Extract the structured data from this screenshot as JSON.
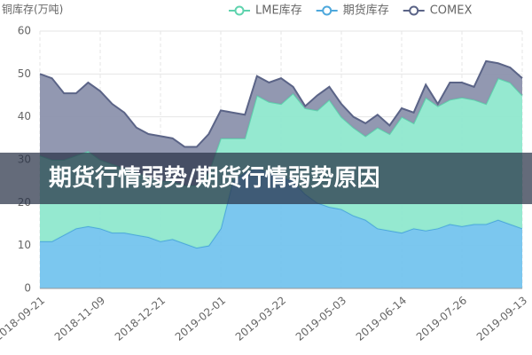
{
  "chart_data": {
    "type": "stacked-area",
    "y_label": "铜库存(万吨)",
    "categories": [
      "2018-09-21",
      null,
      null,
      null,
      null,
      "2018-11-09",
      null,
      null,
      null,
      null,
      "2018-12-21",
      null,
      null,
      null,
      null,
      "2019-02-01",
      null,
      null,
      null,
      null,
      "2019-03-22",
      null,
      null,
      null,
      null,
      "2019-05-03",
      null,
      null,
      null,
      null,
      "2019-06-14",
      null,
      null,
      null,
      null,
      "2019-07-26",
      null,
      null,
      null,
      null,
      "2019-09-13"
    ],
    "series": [
      {
        "name": "LME库存",
        "color": "#8fe8cd",
        "line_color": "#5fd3ae",
        "values": [
          20,
          19,
          17.5,
          17,
          17.5,
          16,
          16,
          15,
          14.5,
          14,
          14,
          13.5,
          13.5,
          14.5,
          17,
          21,
          10,
          8,
          17,
          16.5,
          17,
          20.5,
          20,
          21.5,
          25,
          21.5,
          20.5,
          19.5,
          23.5,
          22.5,
          27,
          24.5,
          31,
          28.5,
          29,
          30,
          29,
          28,
          33,
          33,
          31
        ]
      },
      {
        "name": "期货库存",
        "color": "#74c4ee",
        "line_color": "#4ea8dc",
        "values": [
          11,
          11,
          12.5,
          14,
          14.5,
          14,
          13,
          13,
          12.5,
          12,
          11,
          11.5,
          10.5,
          9.5,
          10,
          14,
          25,
          27,
          28,
          27,
          26,
          25,
          22,
          20,
          19,
          18.5,
          17,
          16,
          14,
          13.5,
          13,
          14,
          13.5,
          14,
          15,
          14.5,
          15,
          15,
          16,
          15,
          14
        ]
      },
      {
        "name": "COMEX",
        "color": "#8c92ad",
        "line_color": "#5b6487",
        "values": [
          19,
          19,
          15.5,
          14.5,
          16,
          16,
          14,
          13,
          10.5,
          10,
          10.5,
          10,
          9,
          9,
          9,
          6.5,
          6,
          5.5,
          4.5,
          4.5,
          6,
          1.5,
          0.5,
          3.5,
          3,
          3,
          2.5,
          3,
          3,
          2,
          2,
          2.5,
          3,
          0.5,
          4,
          3.5,
          3,
          10,
          3.5,
          3.5,
          4
        ]
      }
    ],
    "ylim": [
      0,
      60
    ],
    "yticks": [
      0,
      10,
      20,
      30,
      40,
      50,
      60
    ],
    "grid": true
  },
  "banner": {
    "text": "期货行情弱势/期货行情弱势原因"
  }
}
